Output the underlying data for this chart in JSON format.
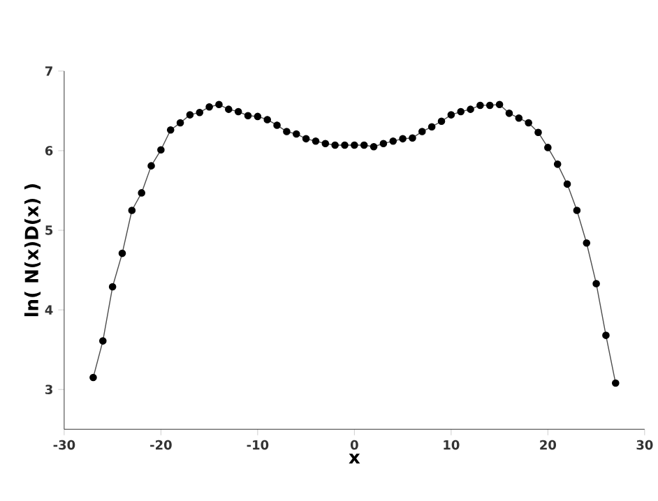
{
  "chart_data": {
    "type": "line",
    "xlabel": "x",
    "ylabel": "ln( N(x)D(x) )",
    "x": [
      -27,
      -26,
      -25,
      -24,
      -23,
      -22,
      -21,
      -20,
      -19,
      -18,
      -17,
      -16,
      -15,
      -14,
      -13,
      -12,
      -11,
      -10,
      -9,
      -8,
      -7,
      -6,
      -5,
      -4,
      -3,
      -2,
      -1,
      0,
      1,
      2,
      3,
      4,
      5,
      6,
      7,
      8,
      9,
      10,
      11,
      12,
      13,
      14,
      15,
      16,
      17,
      18,
      19,
      20,
      21,
      22,
      23,
      24,
      25,
      26,
      27
    ],
    "series": [
      {
        "color": "#000000",
        "values": [
          3.15,
          3.61,
          4.29,
          4.71,
          5.25,
          5.47,
          5.81,
          6.01,
          6.26,
          6.35,
          6.45,
          6.48,
          6.55,
          6.58,
          6.52,
          6.49,
          6.44,
          6.43,
          6.39,
          6.32,
          6.24,
          6.21,
          6.15,
          6.12,
          6.09,
          6.07,
          6.07,
          6.07,
          6.07,
          6.05,
          6.09,
          6.12,
          6.15,
          6.16,
          6.24,
          6.3,
          6.37,
          6.45,
          6.49,
          6.52,
          6.57,
          6.57,
          6.58,
          6.47,
          6.41,
          6.35,
          6.23,
          6.04,
          5.83,
          5.58,
          5.25,
          4.84,
          4.33,
          3.68,
          3.08
        ]
      }
    ],
    "xlim": [
      -30,
      30
    ],
    "ylim": [
      2.5,
      7
    ],
    "xticks": [
      -30,
      -20,
      -10,
      0,
      10,
      20,
      30
    ],
    "yticks": [
      3,
      4,
      5,
      6,
      7
    ],
    "marker": "circle",
    "line_style": "solid"
  }
}
